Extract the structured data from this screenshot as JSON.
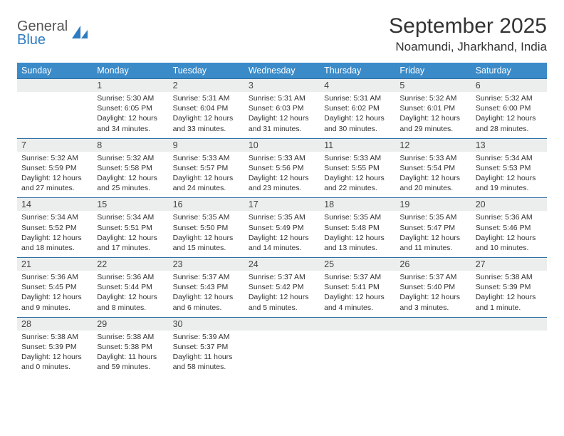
{
  "logo": {
    "line1": "General",
    "line2": "Blue"
  },
  "title": "September 2025",
  "location": "Noamundi, Jharkhand, India",
  "colors": {
    "header_bg": "#3b8bc9",
    "header_text": "#ffffff",
    "numrow_bg": "#eceded",
    "row_border": "#2d6fa5",
    "brand_blue": "#2d7bc0",
    "text": "#333333"
  },
  "weekdays": [
    "Sunday",
    "Monday",
    "Tuesday",
    "Wednesday",
    "Thursday",
    "Friday",
    "Saturday"
  ],
  "weeks": [
    {
      "nums": [
        "",
        "1",
        "2",
        "3",
        "4",
        "5",
        "6"
      ],
      "cells": [
        null,
        {
          "sr": "Sunrise: 5:30 AM",
          "ss": "Sunset: 6:05 PM",
          "d1": "Daylight: 12 hours",
          "d2": "and 34 minutes."
        },
        {
          "sr": "Sunrise: 5:31 AM",
          "ss": "Sunset: 6:04 PM",
          "d1": "Daylight: 12 hours",
          "d2": "and 33 minutes."
        },
        {
          "sr": "Sunrise: 5:31 AM",
          "ss": "Sunset: 6:03 PM",
          "d1": "Daylight: 12 hours",
          "d2": "and 31 minutes."
        },
        {
          "sr": "Sunrise: 5:31 AM",
          "ss": "Sunset: 6:02 PM",
          "d1": "Daylight: 12 hours",
          "d2": "and 30 minutes."
        },
        {
          "sr": "Sunrise: 5:32 AM",
          "ss": "Sunset: 6:01 PM",
          "d1": "Daylight: 12 hours",
          "d2": "and 29 minutes."
        },
        {
          "sr": "Sunrise: 5:32 AM",
          "ss": "Sunset: 6:00 PM",
          "d1": "Daylight: 12 hours",
          "d2": "and 28 minutes."
        }
      ]
    },
    {
      "nums": [
        "7",
        "8",
        "9",
        "10",
        "11",
        "12",
        "13"
      ],
      "cells": [
        {
          "sr": "Sunrise: 5:32 AM",
          "ss": "Sunset: 5:59 PM",
          "d1": "Daylight: 12 hours",
          "d2": "and 27 minutes."
        },
        {
          "sr": "Sunrise: 5:32 AM",
          "ss": "Sunset: 5:58 PM",
          "d1": "Daylight: 12 hours",
          "d2": "and 25 minutes."
        },
        {
          "sr": "Sunrise: 5:33 AM",
          "ss": "Sunset: 5:57 PM",
          "d1": "Daylight: 12 hours",
          "d2": "and 24 minutes."
        },
        {
          "sr": "Sunrise: 5:33 AM",
          "ss": "Sunset: 5:56 PM",
          "d1": "Daylight: 12 hours",
          "d2": "and 23 minutes."
        },
        {
          "sr": "Sunrise: 5:33 AM",
          "ss": "Sunset: 5:55 PM",
          "d1": "Daylight: 12 hours",
          "d2": "and 22 minutes."
        },
        {
          "sr": "Sunrise: 5:33 AM",
          "ss": "Sunset: 5:54 PM",
          "d1": "Daylight: 12 hours",
          "d2": "and 20 minutes."
        },
        {
          "sr": "Sunrise: 5:34 AM",
          "ss": "Sunset: 5:53 PM",
          "d1": "Daylight: 12 hours",
          "d2": "and 19 minutes."
        }
      ]
    },
    {
      "nums": [
        "14",
        "15",
        "16",
        "17",
        "18",
        "19",
        "20"
      ],
      "cells": [
        {
          "sr": "Sunrise: 5:34 AM",
          "ss": "Sunset: 5:52 PM",
          "d1": "Daylight: 12 hours",
          "d2": "and 18 minutes."
        },
        {
          "sr": "Sunrise: 5:34 AM",
          "ss": "Sunset: 5:51 PM",
          "d1": "Daylight: 12 hours",
          "d2": "and 17 minutes."
        },
        {
          "sr": "Sunrise: 5:35 AM",
          "ss": "Sunset: 5:50 PM",
          "d1": "Daylight: 12 hours",
          "d2": "and 15 minutes."
        },
        {
          "sr": "Sunrise: 5:35 AM",
          "ss": "Sunset: 5:49 PM",
          "d1": "Daylight: 12 hours",
          "d2": "and 14 minutes."
        },
        {
          "sr": "Sunrise: 5:35 AM",
          "ss": "Sunset: 5:48 PM",
          "d1": "Daylight: 12 hours",
          "d2": "and 13 minutes."
        },
        {
          "sr": "Sunrise: 5:35 AM",
          "ss": "Sunset: 5:47 PM",
          "d1": "Daylight: 12 hours",
          "d2": "and 11 minutes."
        },
        {
          "sr": "Sunrise: 5:36 AM",
          "ss": "Sunset: 5:46 PM",
          "d1": "Daylight: 12 hours",
          "d2": "and 10 minutes."
        }
      ]
    },
    {
      "nums": [
        "21",
        "22",
        "23",
        "24",
        "25",
        "26",
        "27"
      ],
      "cells": [
        {
          "sr": "Sunrise: 5:36 AM",
          "ss": "Sunset: 5:45 PM",
          "d1": "Daylight: 12 hours",
          "d2": "and 9 minutes."
        },
        {
          "sr": "Sunrise: 5:36 AM",
          "ss": "Sunset: 5:44 PM",
          "d1": "Daylight: 12 hours",
          "d2": "and 8 minutes."
        },
        {
          "sr": "Sunrise: 5:37 AM",
          "ss": "Sunset: 5:43 PM",
          "d1": "Daylight: 12 hours",
          "d2": "and 6 minutes."
        },
        {
          "sr": "Sunrise: 5:37 AM",
          "ss": "Sunset: 5:42 PM",
          "d1": "Daylight: 12 hours",
          "d2": "and 5 minutes."
        },
        {
          "sr": "Sunrise: 5:37 AM",
          "ss": "Sunset: 5:41 PM",
          "d1": "Daylight: 12 hours",
          "d2": "and 4 minutes."
        },
        {
          "sr": "Sunrise: 5:37 AM",
          "ss": "Sunset: 5:40 PM",
          "d1": "Daylight: 12 hours",
          "d2": "and 3 minutes."
        },
        {
          "sr": "Sunrise: 5:38 AM",
          "ss": "Sunset: 5:39 PM",
          "d1": "Daylight: 12 hours",
          "d2": "and 1 minute."
        }
      ]
    },
    {
      "nums": [
        "28",
        "29",
        "30",
        "",
        "",
        "",
        ""
      ],
      "cells": [
        {
          "sr": "Sunrise: 5:38 AM",
          "ss": "Sunset: 5:39 PM",
          "d1": "Daylight: 12 hours",
          "d2": "and 0 minutes."
        },
        {
          "sr": "Sunrise: 5:38 AM",
          "ss": "Sunset: 5:38 PM",
          "d1": "Daylight: 11 hours",
          "d2": "and 59 minutes."
        },
        {
          "sr": "Sunrise: 5:39 AM",
          "ss": "Sunset: 5:37 PM",
          "d1": "Daylight: 11 hours",
          "d2": "and 58 minutes."
        },
        null,
        null,
        null,
        null
      ]
    }
  ]
}
